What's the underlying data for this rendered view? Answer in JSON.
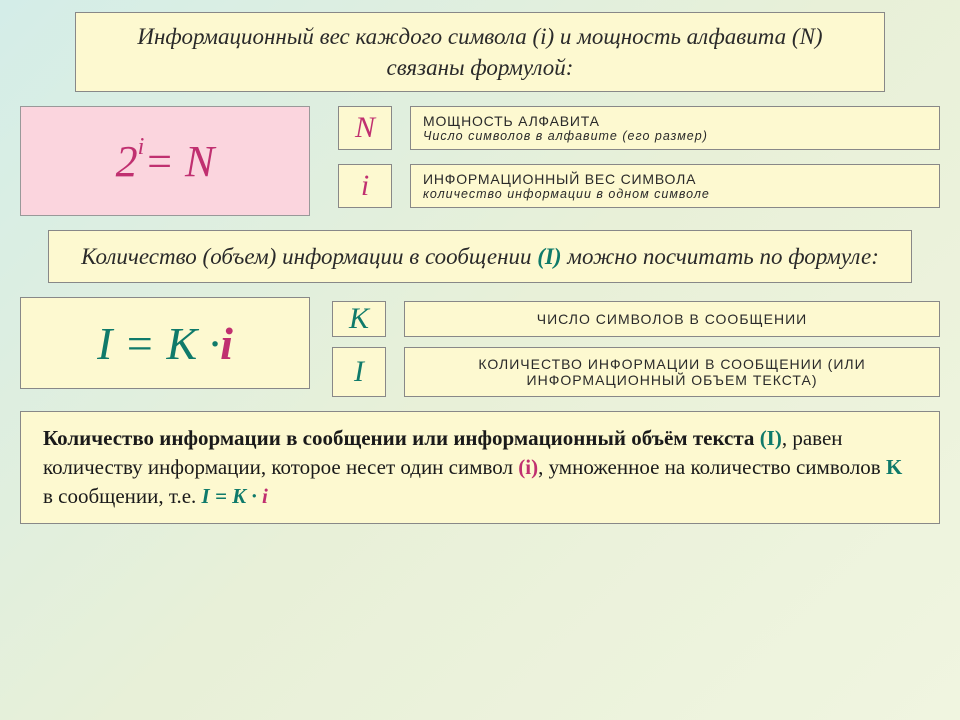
{
  "header1": {
    "text": "Информационный вес каждого символа (i) и мощность алфавита (N) связаны формулой:"
  },
  "formula1": {
    "base": "2",
    "exp": "i",
    "eq": " =  N"
  },
  "defs1": [
    {
      "sym": "N",
      "sym_color": "#c03070",
      "title": "МОЩНОСТЬ АЛФАВИТА",
      "sub": "Число символов в алфавите (его размер)"
    },
    {
      "sym": "i",
      "sym_color": "#c03070",
      "title": "ИНФОРМАЦИОННЫЙ ВЕС СИМВОЛА",
      "sub": "количество информации в одном символе"
    }
  ],
  "header2": {
    "pre": "Количество (объем) информации в сообщении ",
    "hl": "(I)",
    "post": " можно посчитать по формуле:"
  },
  "formula2": {
    "left": "I = K · ",
    "right": "i"
  },
  "defs2": [
    {
      "sym": "K",
      "sym_class": "sym-k",
      "text": "ЧИСЛО СИМВОЛОВ В СООБЩЕНИИ"
    },
    {
      "sym": "I",
      "sym_class": "sym-bigi",
      "text": "КОЛИЧЕСТВО ИНФОРМАЦИИ В СООБЩЕНИИ (ИЛИ ИНФОРМАЦИОННЫЙ ОБЪЕМ ТЕКСТА)"
    }
  ],
  "bottom": {
    "t1": "Количество информации в сообщении  или информационный объём текста ",
    "I": "(I)",
    "t2": ", равен количеству информации, которое несет один символ ",
    "i": "(i)",
    "t3": ", умноженное на количество символов ",
    "K": "K",
    "t4": " в сообщении, т.е. ",
    "formula_left": "I = K · ",
    "formula_i": "i"
  },
  "colors": {
    "bg_yellow": "#fdf9d0",
    "bg_pink": "#fbd5de",
    "green": "#0f7a6a",
    "pink": "#c03070",
    "border": "#888888"
  }
}
